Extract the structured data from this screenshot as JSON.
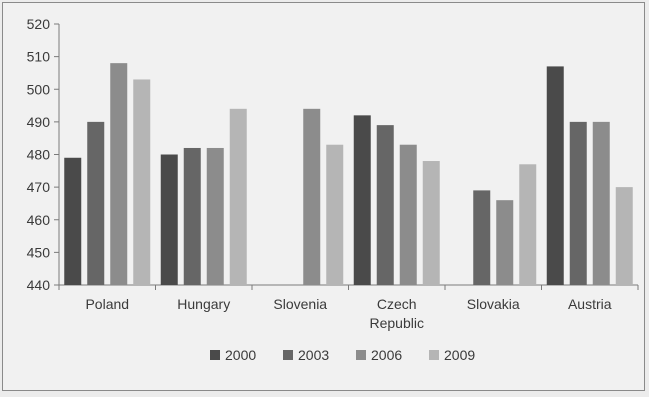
{
  "chart_data": {
    "type": "bar",
    "title": "",
    "xlabel": "",
    "ylabel": "",
    "categories": [
      [
        "Poland"
      ],
      [
        "Hungary"
      ],
      [
        "Slovenia"
      ],
      [
        "Czech",
        "Republic"
      ],
      [
        "Slovakia"
      ],
      [
        "Austria"
      ]
    ],
    "ylim": [
      440,
      520
    ],
    "yticks": [
      440,
      450,
      460,
      470,
      480,
      490,
      500,
      510,
      520
    ],
    "grid": false,
    "legend_position": "bottom",
    "series": [
      {
        "name": "2000",
        "color": "#4a4a4a",
        "values": [
          479,
          480,
          null,
          492,
          null,
          507
        ]
      },
      {
        "name": "2003",
        "color": "#666666",
        "values": [
          490,
          482,
          null,
          489,
          469,
          490
        ]
      },
      {
        "name": "2006",
        "color": "#8c8c8c",
        "values": [
          508,
          482,
          494,
          483,
          466,
          490
        ]
      },
      {
        "name": "2009",
        "color": "#b5b5b5",
        "values": [
          503,
          494,
          483,
          478,
          477,
          470
        ]
      }
    ]
  }
}
